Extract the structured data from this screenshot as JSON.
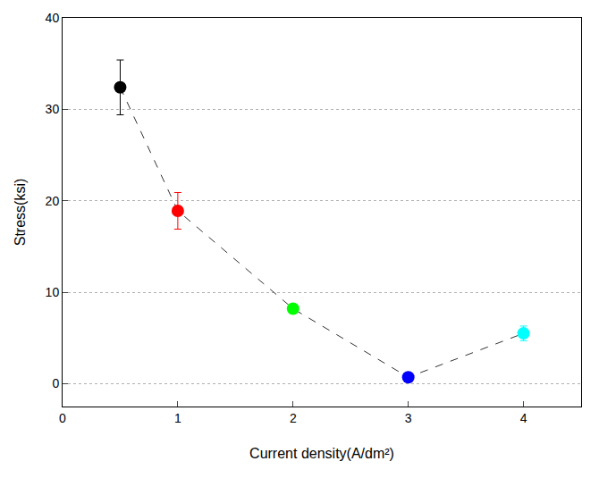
{
  "chart_data": {
    "type": "line",
    "x_label": "Current density(A/dm²)",
    "y_label": "Stress(ksi)",
    "x": [
      0.5,
      1,
      2,
      3,
      4
    ],
    "values": [
      32.4,
      18.9,
      8.2,
      0.7,
      5.5
    ],
    "errors": [
      3.0,
      2.0,
      0.4,
      0.3,
      0.8
    ],
    "colors": [
      "#000000",
      "#ff0000",
      "#00ff00",
      "#0000ff",
      "#00ffff"
    ],
    "color": "#333333",
    "line_style": "dashed",
    "marker": "circle",
    "xlim": [
      0,
      4.5
    ],
    "xticks": [
      0,
      1,
      2,
      3,
      4
    ],
    "ylim": [
      -2.5,
      40
    ],
    "yticks": [
      0,
      10,
      20,
      30,
      40
    ],
    "grid": true
  }
}
